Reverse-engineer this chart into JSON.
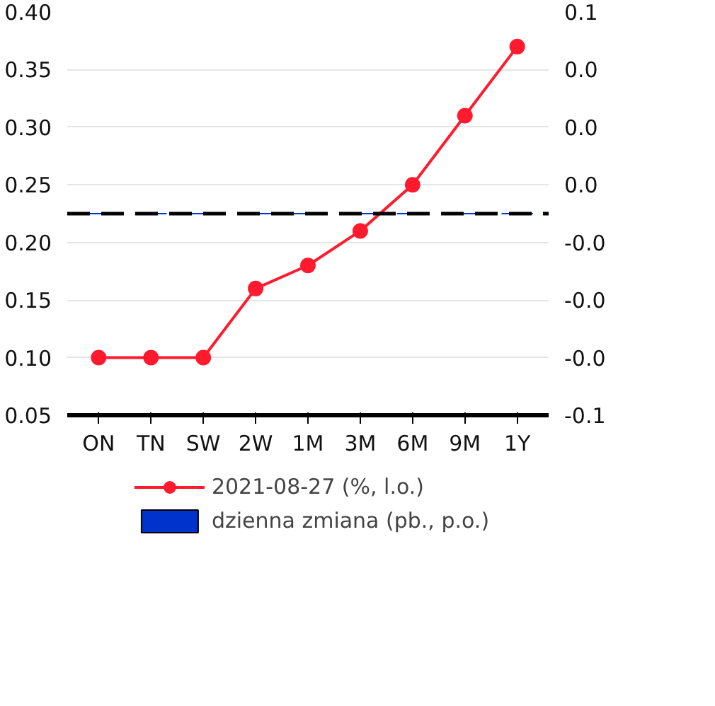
{
  "chart_data": {
    "type": "line",
    "categories": [
      "ON",
      "TN",
      "SW",
      "2W",
      "1M",
      "3M",
      "6M",
      "9M",
      "1Y"
    ],
    "series": [
      {
        "name": "2021-08-27 (%, l.o.)",
        "color": "#ff1a2e",
        "values": [
          0.1,
          0.1,
          0.1,
          0.16,
          0.18,
          0.21,
          0.25,
          0.31,
          0.37
        ]
      },
      {
        "name": "dzienna zmiana (pb., p.o.)",
        "type": "bar",
        "axis": "y2",
        "color": "#0033cc",
        "values": [
          0,
          0,
          0,
          0,
          0,
          0,
          0,
          0,
          0
        ]
      }
    ],
    "ylim": [
      0.05,
      0.4
    ],
    "yticks": [
      0.05,
      {
        "value": 0.1,
        "label": "0.10"
      },
      0.15,
      {
        "value": 0.2,
        "label": "0.20"
      },
      0.25,
      {
        "value": 0.3,
        "label": "0.30"
      },
      0.35,
      {
        "value": 0.4,
        "label": "0.40"
      }
    ],
    "y2lim": [
      -0.06,
      0.06
    ],
    "y2ticks": [
      {
        "value": -0.06,
        "label": "-0.1"
      },
      {
        "value": -0.0429,
        "label": "-0.0"
      },
      {
        "value": -0.0257,
        "label": "-0.0"
      },
      {
        "value": -0.0086,
        "label": "-0.0"
      },
      {
        "value": 0.0086,
        "label": "0.0"
      },
      {
        "value": 0.0257,
        "label": "0.0"
      },
      {
        "value": 0.0429,
        "label": "0.0"
      },
      {
        "value": 0.06,
        "label": "0.1"
      }
    ],
    "ref_lines": [
      {
        "axis": "y2",
        "value": 0,
        "color": "#000000",
        "line_style": "dashed"
      }
    ],
    "grid": "y",
    "legend": "bottom",
    "marker": "circle",
    "line_style": "solid"
  }
}
